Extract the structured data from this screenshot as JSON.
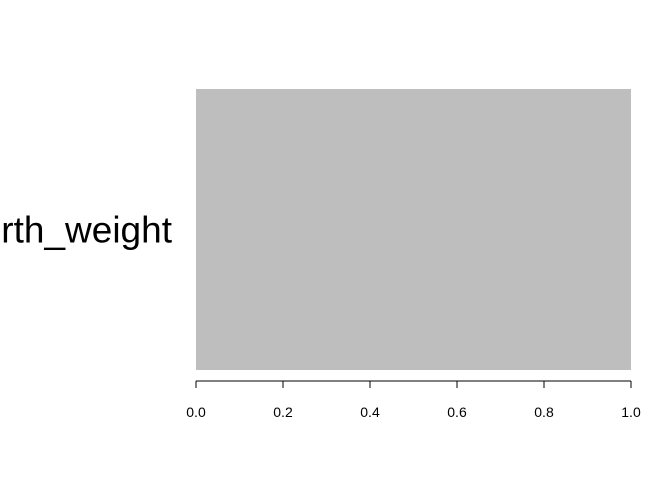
{
  "chart_data": {
    "type": "bar",
    "orientation": "horizontal",
    "categories": [
      "birth_weight"
    ],
    "values": [
      1.0
    ],
    "xlim": [
      0,
      1
    ],
    "xticks": [
      0.0,
      0.2,
      0.4,
      0.6,
      0.8,
      1.0
    ],
    "xtick_labels": [
      "0.0",
      "0.2",
      "0.4",
      "0.6",
      "0.8",
      "1.0"
    ],
    "bar_color": "#bebebe",
    "grid": false,
    "legend": "none"
  }
}
